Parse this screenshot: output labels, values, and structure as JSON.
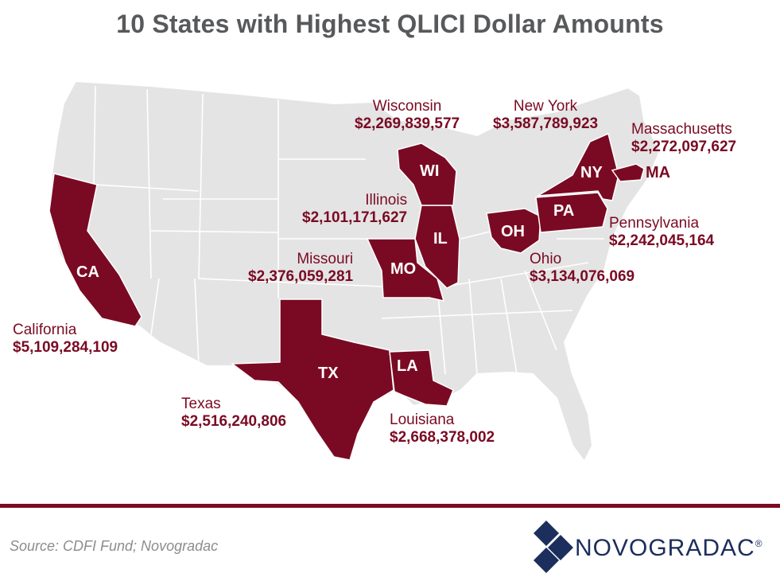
{
  "title": "10 States with Highest QLICI Dollar Amounts",
  "colors": {
    "highlight": "#7a0a23",
    "base_state": "#e4e4e4",
    "title": "#58595b",
    "logo": "#1b2e5c"
  },
  "states": [
    {
      "abbr": "CA",
      "name": "California",
      "amount": "$5,109,284,109"
    },
    {
      "abbr": "TX",
      "name": "Texas",
      "amount": "$2,516,240,806"
    },
    {
      "abbr": "LA",
      "name": "Louisiana",
      "amount": "$2,668,378,002"
    },
    {
      "abbr": "MO",
      "name": "Missouri",
      "amount": "$2,376,059,281"
    },
    {
      "abbr": "IL",
      "name": "Illinois",
      "amount": "$2,101,171,627"
    },
    {
      "abbr": "WI",
      "name": "Wisconsin",
      "amount": "$2,269,839,577"
    },
    {
      "abbr": "OH",
      "name": "Ohio",
      "amount": "$3,134,076,069"
    },
    {
      "abbr": "PA",
      "name": "Pennsylvania",
      "amount": "$2,242,045,164"
    },
    {
      "abbr": "NY",
      "name": "New York",
      "amount": "$3,587,789,923"
    },
    {
      "abbr": "MA",
      "name": "Massachusetts",
      "amount": "$2,272,097,627"
    }
  ],
  "source": "Source: CDFI Fund; Novogradac",
  "logo": {
    "text": "NOVOGRADAC",
    "mark": "®"
  }
}
